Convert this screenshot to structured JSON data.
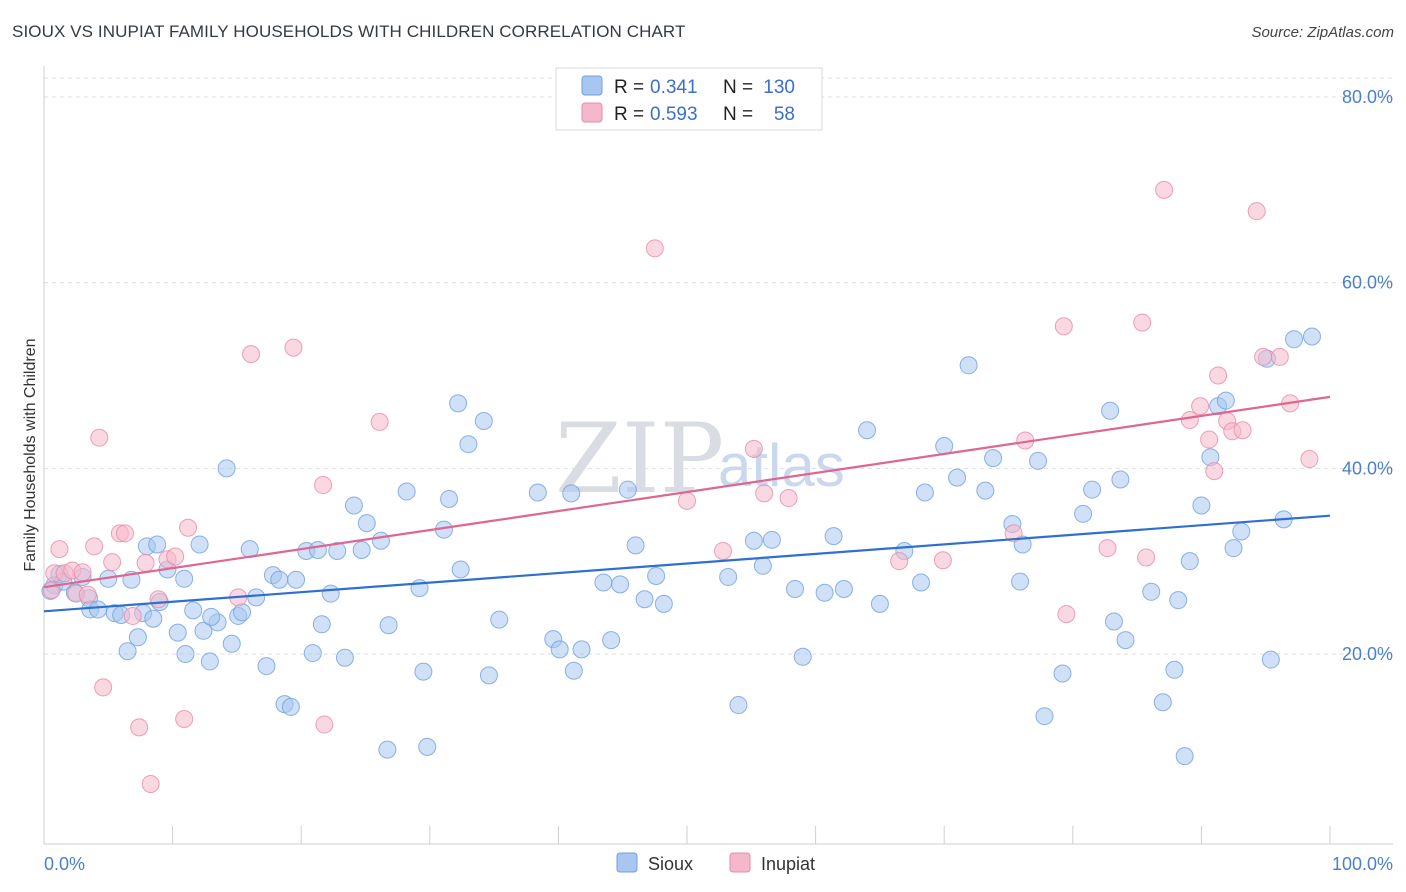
{
  "title": "SIOUX VS INUPIAT FAMILY HOUSEHOLDS WITH CHILDREN CORRELATION CHART",
  "source": "Source: ZipAtlas.com",
  "watermark": {
    "zip": "ZIP",
    "atlas": "atlas"
  },
  "legend_top": [
    {
      "r_label": "R = ",
      "r_value": "0.341",
      "n_label": "N = ",
      "n_value": "130",
      "color": "#a8c6f0"
    },
    {
      "r_label": "R = ",
      "r_value": "0.593",
      "n_label": "N = ",
      "n_value": "58",
      "color": "#f5b8cb"
    }
  ],
  "legend_bottom": [
    {
      "label": "Sioux",
      "color": "#a8c6f0"
    },
    {
      "label": "Inupiat",
      "color": "#f5b8cb"
    }
  ],
  "chart_data": {
    "type": "scatter",
    "title": "SIOUX VS INUPIAT FAMILY HOUSEHOLDS WITH CHILDREN CORRELATION CHART",
    "xlabel": "",
    "ylabel": "Family Households with Children",
    "xlim": [
      0,
      100
    ],
    "ylim": [
      0,
      84
    ],
    "x_ticks": [
      "0.0%",
      "100.0%"
    ],
    "y_ticks": [
      {
        "v": 20,
        "label": "20.0%"
      },
      {
        "v": 40,
        "label": "40.0%"
      },
      {
        "v": 60,
        "label": "60.0%"
      },
      {
        "v": 80,
        "label": "80.0%"
      }
    ],
    "grid": true,
    "legend_position": "top-center",
    "series": [
      {
        "name": "Sioux",
        "color": "#6fa0e0",
        "fill": "#a8c6f0",
        "trend": {
          "x0": 0,
          "y0": 24.6,
          "x1": 100,
          "y1": 34.9,
          "color": "#2f6fd0"
        },
        "points": [
          [
            0.8,
            27.4
          ],
          [
            1.2,
            28.6
          ],
          [
            1.5,
            27.8
          ],
          [
            2.4,
            26.6
          ],
          [
            3.0,
            28.3
          ],
          [
            3.5,
            26.0
          ],
          [
            3.6,
            24.8
          ],
          [
            4.2,
            24.8
          ],
          [
            5.5,
            24.4
          ],
          [
            6.0,
            24.2
          ],
          [
            6.5,
            20.3
          ],
          [
            6.8,
            28.0
          ],
          [
            7.3,
            21.8
          ],
          [
            7.7,
            24.4
          ],
          [
            8.0,
            31.6
          ],
          [
            8.5,
            23.8
          ],
          [
            8.8,
            31.8
          ],
          [
            9.0,
            25.6
          ],
          [
            9.6,
            29.1
          ],
          [
            10.4,
            22.3
          ],
          [
            10.9,
            28.1
          ],
          [
            11.6,
            24.7
          ],
          [
            12.1,
            31.8
          ],
          [
            12.4,
            22.5
          ],
          [
            12.9,
            19.2
          ],
          [
            13.5,
            23.4
          ],
          [
            14.2,
            40.0
          ],
          [
            14.6,
            21.1
          ],
          [
            15.1,
            24.1
          ],
          [
            15.4,
            24.5
          ],
          [
            16.0,
            31.3
          ],
          [
            16.5,
            26.1
          ],
          [
            17.3,
            18.7
          ],
          [
            17.8,
            28.5
          ],
          [
            18.3,
            28.0
          ],
          [
            18.7,
            14.6
          ],
          [
            19.2,
            14.3
          ],
          [
            19.6,
            28.0
          ],
          [
            20.4,
            31.1
          ],
          [
            20.9,
            20.1
          ],
          [
            21.3,
            31.2
          ],
          [
            21.6,
            23.2
          ],
          [
            22.3,
            26.5
          ],
          [
            22.8,
            31.1
          ],
          [
            23.4,
            19.6
          ],
          [
            24.1,
            36.0
          ],
          [
            24.7,
            31.2
          ],
          [
            25.1,
            34.1
          ],
          [
            26.2,
            32.2
          ],
          [
            26.8,
            23.1
          ],
          [
            26.7,
            9.7
          ],
          [
            28.2,
            37.5
          ],
          [
            29.2,
            27.1
          ],
          [
            29.5,
            18.1
          ],
          [
            29.8,
            10.0
          ],
          [
            31.1,
            33.4
          ],
          [
            31.5,
            36.7
          ],
          [
            32.2,
            47.0
          ],
          [
            32.4,
            29.1
          ],
          [
            33.0,
            42.6
          ],
          [
            34.2,
            45.1
          ],
          [
            34.6,
            17.7
          ],
          [
            35.4,
            23.7
          ],
          [
            38.4,
            37.4
          ],
          [
            39.6,
            21.6
          ],
          [
            40.1,
            20.5
          ],
          [
            41.0,
            37.3
          ],
          [
            41.2,
            18.2
          ],
          [
            41.8,
            20.5
          ],
          [
            43.5,
            27.7
          ],
          [
            44.1,
            21.5
          ],
          [
            44.8,
            27.5
          ],
          [
            45.4,
            37.7
          ],
          [
            46.0,
            31.7
          ],
          [
            46.7,
            25.9
          ],
          [
            47.6,
            28.4
          ],
          [
            48.2,
            25.4
          ],
          [
            53.2,
            28.3
          ],
          [
            54.0,
            14.5
          ],
          [
            55.2,
            32.2
          ],
          [
            55.9,
            29.5
          ],
          [
            56.6,
            32.3
          ],
          [
            58.4,
            27.0
          ],
          [
            59.0,
            19.7
          ],
          [
            60.7,
            26.6
          ],
          [
            61.4,
            32.7
          ],
          [
            62.2,
            27.0
          ],
          [
            64.0,
            44.1
          ],
          [
            65.0,
            25.4
          ],
          [
            66.9,
            31.1
          ],
          [
            68.2,
            27.7
          ],
          [
            68.5,
            37.4
          ],
          [
            70.0,
            42.4
          ],
          [
            71.0,
            39.0
          ],
          [
            71.9,
            51.1
          ],
          [
            73.2,
            37.6
          ],
          [
            73.8,
            41.1
          ],
          [
            75.3,
            34.0
          ],
          [
            75.9,
            27.8
          ],
          [
            76.1,
            31.8
          ],
          [
            77.8,
            13.3
          ],
          [
            77.3,
            40.8
          ],
          [
            79.2,
            17.9
          ],
          [
            80.8,
            35.1
          ],
          [
            81.5,
            37.7
          ],
          [
            82.9,
            46.2
          ],
          [
            83.2,
            23.5
          ],
          [
            83.7,
            38.8
          ],
          [
            84.1,
            21.5
          ],
          [
            86.1,
            26.7
          ],
          [
            87.0,
            14.8
          ],
          [
            87.9,
            18.3
          ],
          [
            88.2,
            25.8
          ],
          [
            88.7,
            9.0
          ],
          [
            89.1,
            30.0
          ],
          [
            90.0,
            36.0
          ],
          [
            90.7,
            41.2
          ],
          [
            91.3,
            46.7
          ],
          [
            91.9,
            47.3
          ],
          [
            92.5,
            31.4
          ],
          [
            93.1,
            33.2
          ],
          [
            95.1,
            51.8
          ],
          [
            95.4,
            19.4
          ],
          [
            96.4,
            34.5
          ],
          [
            97.2,
            53.9
          ],
          [
            98.6,
            54.2
          ],
          [
            0.5,
            26.8
          ],
          [
            5.0,
            28.1
          ],
          [
            11.0,
            20.0
          ],
          [
            13.0,
            24.0
          ]
        ]
      },
      {
        "name": "Inupiat",
        "color": "#e88aa8",
        "fill": "#f5b8cb",
        "trend": {
          "x0": 0,
          "y0": 27.2,
          "x1": 100,
          "y1": 47.7,
          "color": "#e0658f"
        },
        "points": [
          [
            0.6,
            26.9
          ],
          [
            0.8,
            28.7
          ],
          [
            1.2,
            31.3
          ],
          [
            1.6,
            28.7
          ],
          [
            2.2,
            29.0
          ],
          [
            2.5,
            26.5
          ],
          [
            3.0,
            28.8
          ],
          [
            3.4,
            26.4
          ],
          [
            3.9,
            31.6
          ],
          [
            4.3,
            43.3
          ],
          [
            4.6,
            16.4
          ],
          [
            5.3,
            29.9
          ],
          [
            5.9,
            33.0
          ],
          [
            6.3,
            33.0
          ],
          [
            6.9,
            24.1
          ],
          [
            7.4,
            12.1
          ],
          [
            7.9,
            29.8
          ],
          [
            8.3,
            6.0
          ],
          [
            8.9,
            25.9
          ],
          [
            9.6,
            30.2
          ],
          [
            10.2,
            30.5
          ],
          [
            10.9,
            13.0
          ],
          [
            11.2,
            33.6
          ],
          [
            15.1,
            26.1
          ],
          [
            16.1,
            52.3
          ],
          [
            19.4,
            53.0
          ],
          [
            21.7,
            38.2
          ],
          [
            21.8,
            12.4
          ],
          [
            26.1,
            45.0
          ],
          [
            47.5,
            63.7
          ],
          [
            50.0,
            36.5
          ],
          [
            52.8,
            31.1
          ],
          [
            55.2,
            42.1
          ],
          [
            56.0,
            37.3
          ],
          [
            57.9,
            36.8
          ],
          [
            66.5,
            30.0
          ],
          [
            69.9,
            30.1
          ],
          [
            75.4,
            33.0
          ],
          [
            76.3,
            43.0
          ],
          [
            79.5,
            24.3
          ],
          [
            79.3,
            55.3
          ],
          [
            82.7,
            31.4
          ],
          [
            85.4,
            55.7
          ],
          [
            85.7,
            30.4
          ],
          [
            87.1,
            70.0
          ],
          [
            89.1,
            45.2
          ],
          [
            89.9,
            46.7
          ],
          [
            90.6,
            43.1
          ],
          [
            91.0,
            39.7
          ],
          [
            91.3,
            50.0
          ],
          [
            92.0,
            45.1
          ],
          [
            92.4,
            44.0
          ],
          [
            93.2,
            44.1
          ],
          [
            94.3,
            67.7
          ],
          [
            94.8,
            52.0
          ],
          [
            96.1,
            52.0
          ],
          [
            96.9,
            47.0
          ],
          [
            98.4,
            41.0
          ]
        ]
      }
    ]
  }
}
